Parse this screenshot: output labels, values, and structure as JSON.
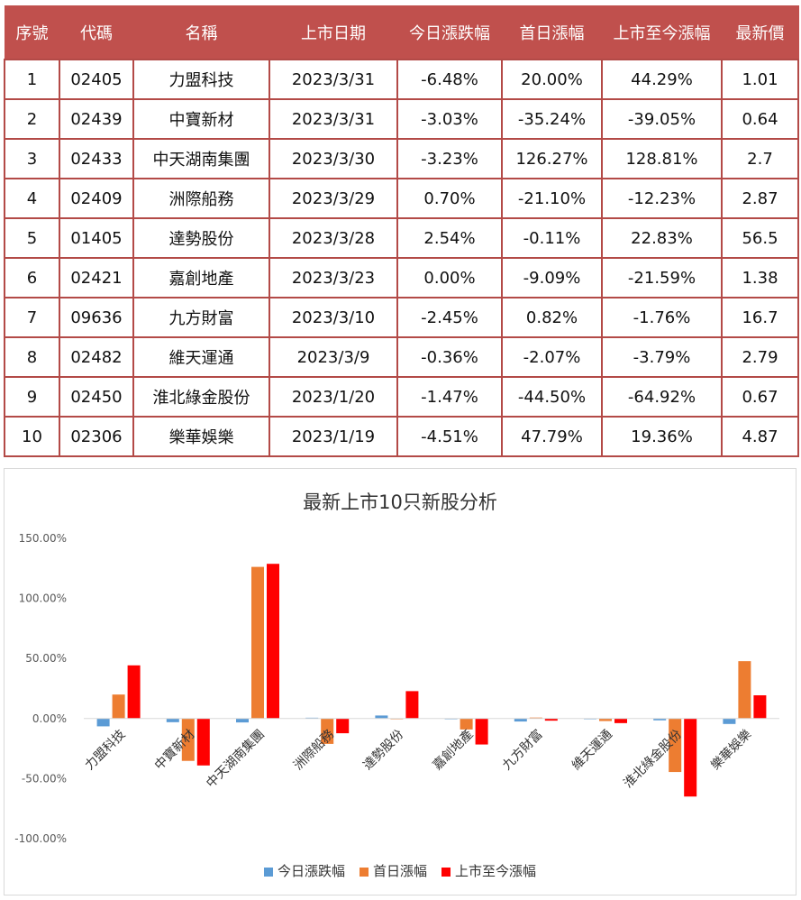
{
  "table": {
    "headers": [
      "序號",
      "代碼",
      "名稱",
      "上市日期",
      "今日漲跌幅",
      "首日漲幅",
      "上市至今漲幅",
      "最新價"
    ],
    "rows": [
      [
        "1",
        "02405",
        "力盟科技",
        "2023/3/31",
        "-6.48%",
        "20.00%",
        "44.29%",
        "1.01"
      ],
      [
        "2",
        "02439",
        "中寶新材",
        "2023/3/31",
        "-3.03%",
        "-35.24%",
        "-39.05%",
        "0.64"
      ],
      [
        "3",
        "02433",
        "中天湖南集團",
        "2023/3/30",
        "-3.23%",
        "126.27%",
        "128.81%",
        "2.7"
      ],
      [
        "4",
        "02409",
        "洲際船務",
        "2023/3/29",
        "0.70%",
        "-21.10%",
        "-12.23%",
        "2.87"
      ],
      [
        "5",
        "01405",
        "達勢股份",
        "2023/3/28",
        "2.54%",
        "-0.11%",
        "22.83%",
        "56.5"
      ],
      [
        "6",
        "02421",
        "嘉創地產",
        "2023/3/23",
        "0.00%",
        "-9.09%",
        "-21.59%",
        "1.38"
      ],
      [
        "7",
        "09636",
        "九方財富",
        "2023/3/10",
        "-2.45%",
        "0.82%",
        "-1.76%",
        "16.7"
      ],
      [
        "8",
        "02482",
        "維天運通",
        "2023/3/9",
        "-0.36%",
        "-2.07%",
        "-3.79%",
        "2.79"
      ],
      [
        "9",
        "02450",
        "淮北綠金股份",
        "2023/1/20",
        "-1.47%",
        "-44.50%",
        "-64.92%",
        "0.67"
      ],
      [
        "10",
        "02306",
        "樂華娛樂",
        "2023/1/19",
        "-4.51%",
        "47.79%",
        "19.36%",
        "4.87"
      ]
    ]
  },
  "chart_data": {
    "type": "bar",
    "title": "最新上市10只新股分析",
    "categories": [
      "力盟科技",
      "中寶新材",
      "中天湖南集團",
      "洲際船務",
      "達勢股份",
      "嘉創地產",
      "九方財富",
      "維天運通",
      "淮北綠金股份",
      "樂華娛樂"
    ],
    "series": [
      {
        "name": "今日漲跌幅",
        "color": "#5b9bd5",
        "values": [
          -6.48,
          -3.03,
          -3.23,
          0.7,
          2.54,
          0.0,
          -2.45,
          -0.36,
          -1.47,
          -4.51
        ]
      },
      {
        "name": "首日漲幅",
        "color": "#ed7d31",
        "values": [
          20.0,
          -35.24,
          126.27,
          -21.1,
          -0.11,
          -9.09,
          0.82,
          -2.07,
          -44.5,
          47.79
        ]
      },
      {
        "name": "上市至今漲幅",
        "color": "#ff0000",
        "values": [
          44.29,
          -39.05,
          128.81,
          -12.23,
          22.83,
          -21.59,
          -1.76,
          -3.79,
          -64.92,
          19.36
        ]
      }
    ],
    "yticks": [
      "150.00%",
      "100.00%",
      "50.00%",
      "0.00%",
      "-50.00%",
      "-100.00%"
    ],
    "ylim": [
      -100,
      150
    ],
    "grid": false,
    "legend": "bottom"
  },
  "colors": {
    "header_bg": "#c0504d",
    "header_text": "#ffffff",
    "border": "#b34a47"
  }
}
